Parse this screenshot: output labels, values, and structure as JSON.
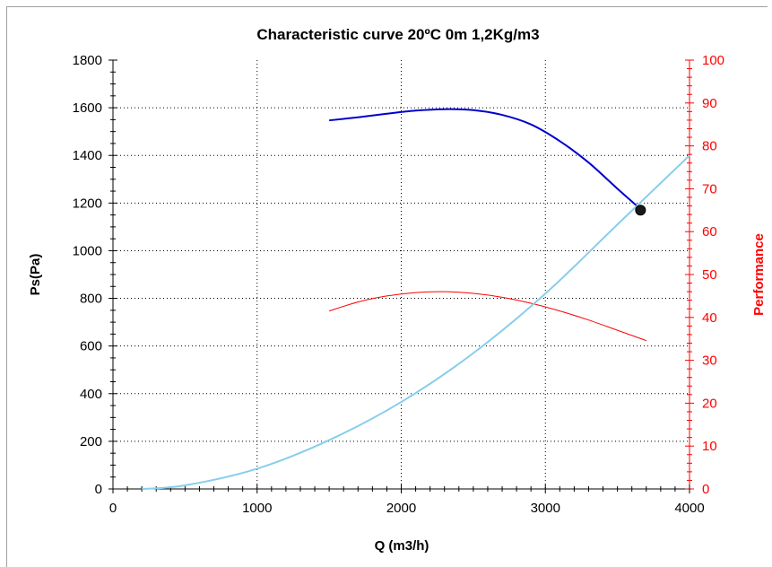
{
  "chart_data": {
    "type": "line",
    "title": "Characteristic curve 20ºC 0m 1,2Kg/m3",
    "xlabel": "Q (m3/h)",
    "ylabel": "Ps(Pa)",
    "y2label": "Performance",
    "xlim": [
      0,
      4000
    ],
    "ylim": [
      0,
      1800
    ],
    "y2lim": [
      0,
      100
    ],
    "xticks": [
      "0",
      "1000",
      "2000",
      "3000",
      "4000"
    ],
    "yticks": [
      "0",
      "200",
      "400",
      "600",
      "800",
      "1000",
      "1200",
      "1400",
      "1600",
      "1800"
    ],
    "y2ticks": [
      "0",
      "10",
      "20",
      "30",
      "40",
      "50",
      "60",
      "70",
      "80",
      "90",
      "100"
    ],
    "grid": true,
    "colors": {
      "pressure": "#0000cc",
      "performance": "#ff0000",
      "system": "#87ceeb",
      "axis_right": "#ff0000",
      "operating_point": "#1a1a1a"
    },
    "series": [
      {
        "axis": "left",
        "color": "#0000cc",
        "x": [
          1500,
          1700,
          1900,
          2100,
          2300,
          2500,
          2700,
          2900,
          3100,
          3300,
          3500,
          3650
        ],
        "y": [
          1547,
          1560,
          1575,
          1588,
          1594,
          1590,
          1570,
          1530,
          1460,
          1370,
          1260,
          1180
        ]
      },
      {
        "axis": "right",
        "color": "#ff0000",
        "x": [
          1500,
          1700,
          1900,
          2100,
          2300,
          2500,
          2700,
          2900,
          3100,
          3300,
          3500,
          3700
        ],
        "y": [
          41.5,
          43.6,
          45.0,
          45.8,
          46.0,
          45.6,
          44.7,
          43.3,
          41.5,
          39.4,
          37.0,
          34.6
        ]
      },
      {
        "axis": "left",
        "color": "#87ceeb",
        "x": [
          200,
          500,
          1000,
          1500,
          2000,
          2500,
          3000,
          3500,
          4000
        ],
        "y": [
          0,
          15,
          85,
          205,
          365,
          570,
          820,
          1110,
          1400
        ]
      }
    ],
    "operating_point": {
      "x": 3660,
      "y": 1170
    }
  }
}
